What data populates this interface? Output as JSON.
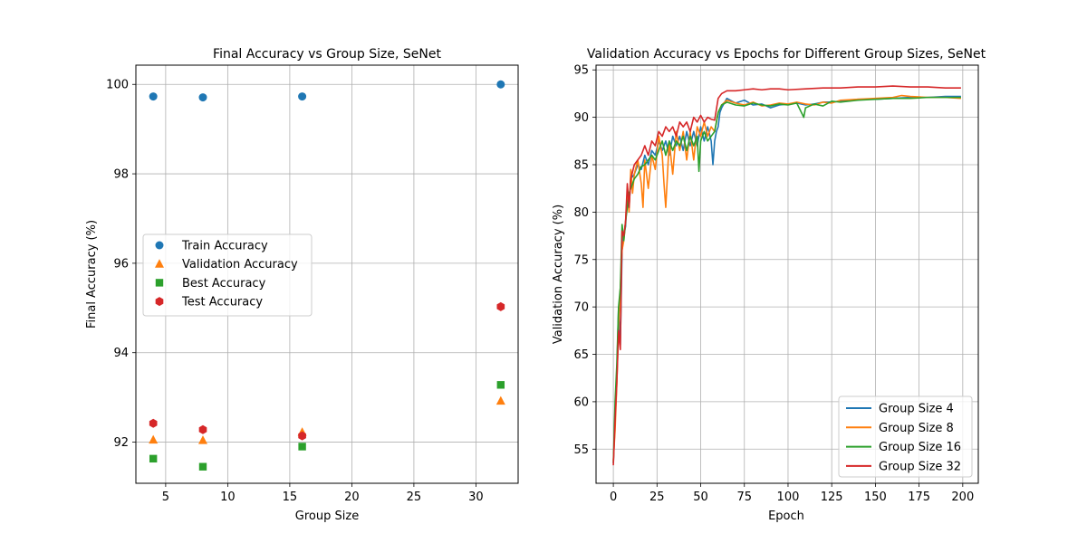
{
  "colors": {
    "blue": "#1f77b4",
    "orange": "#ff7f0e",
    "green": "#2ca02c",
    "red": "#d62728",
    "grid": "#b0b0b0"
  },
  "chart_data": [
    {
      "type": "scatter",
      "title": "Final Accuracy vs Group Size, SeNet",
      "xlabel": "Group Size",
      "ylabel": "Final Accuracy (%)",
      "xlim": [
        2.6,
        33.4
      ],
      "ylim": [
        91.08,
        100.43
      ],
      "xticks": [
        5,
        10,
        15,
        20,
        25,
        30
      ],
      "yticks": [
        92,
        94,
        96,
        98,
        100
      ],
      "grid": true,
      "legend": "center-left",
      "x": [
        4,
        8,
        16,
        32
      ],
      "series": [
        {
          "name": "Train Accuracy",
          "marker": "circle",
          "color": "#1f77b4",
          "values": [
            99.73,
            99.71,
            99.73,
            100.0
          ]
        },
        {
          "name": "Validation Accuracy",
          "marker": "triangle",
          "color": "#ff7f0e",
          "values": [
            92.05,
            92.04,
            92.22,
            92.92
          ]
        },
        {
          "name": "Best Accuracy",
          "marker": "square",
          "color": "#2ca02c",
          "values": [
            91.63,
            91.45,
            91.9,
            93.28
          ]
        },
        {
          "name": "Test Accuracy",
          "marker": "hexagon",
          "color": "#d62728",
          "values": [
            92.42,
            92.28,
            92.14,
            95.03
          ]
        }
      ]
    },
    {
      "type": "line",
      "title": "Validation Accuracy vs Epochs for Different Group Sizes, SeNet",
      "xlabel": "Epoch",
      "ylabel": "Validation Accuracy (%)",
      "xlim": [
        -9.9,
        208.9
      ],
      "ylim": [
        51.4,
        95.5
      ],
      "xticks": [
        0,
        25,
        50,
        75,
        100,
        125,
        150,
        175,
        200
      ],
      "yticks": [
        55,
        60,
        65,
        70,
        75,
        80,
        85,
        90,
        95
      ],
      "grid": true,
      "legend": "lower-right",
      "series": [
        {
          "name": "Group Size 4",
          "color": "#1f77b4",
          "points": [
            [
              0,
              53.5
            ],
            [
              1,
              58
            ],
            [
              2,
              63
            ],
            [
              3,
              70
            ],
            [
              4,
              66
            ],
            [
              5,
              76
            ],
            [
              6,
              77.5
            ],
            [
              7,
              78.5
            ],
            [
              8,
              82
            ],
            [
              9,
              80.5
            ],
            [
              10,
              83.5
            ],
            [
              12,
              84
            ],
            [
              14,
              85
            ],
            [
              16,
              84.5
            ],
            [
              18,
              86
            ],
            [
              20,
              85
            ],
            [
              22,
              86.5
            ],
            [
              24,
              86
            ],
            [
              26,
              87.5
            ],
            [
              28,
              86.5
            ],
            [
              30,
              87.5
            ],
            [
              32,
              86
            ],
            [
              34,
              88
            ],
            [
              36,
              87
            ],
            [
              38,
              88
            ],
            [
              40,
              86.5
            ],
            [
              42,
              88.5
            ],
            [
              44,
              87
            ],
            [
              46,
              88.5
            ],
            [
              48,
              87
            ],
            [
              50,
              89
            ],
            [
              52,
              87.5
            ],
            [
              54,
              89
            ],
            [
              56,
              87.5
            ],
            [
              57,
              85
            ],
            [
              58,
              87.5
            ],
            [
              59,
              88.5
            ],
            [
              60,
              89
            ],
            [
              61,
              90.5
            ],
            [
              62,
              91
            ],
            [
              65,
              92
            ],
            [
              70,
              91.5
            ],
            [
              75,
              91.8
            ],
            [
              80,
              91.3
            ],
            [
              85,
              91.4
            ],
            [
              90,
              91
            ],
            [
              95,
              91.3
            ],
            [
              100,
              91.4
            ],
            [
              105,
              91.5
            ],
            [
              110,
              91.3
            ],
            [
              115,
              91.4
            ],
            [
              120,
              91.6
            ],
            [
              125,
              91.6
            ],
            [
              130,
              91.7
            ],
            [
              140,
              91.9
            ],
            [
              150,
              91.9
            ],
            [
              160,
              92
            ],
            [
              170,
              92.1
            ],
            [
              180,
              92.1
            ],
            [
              190,
              92.2
            ],
            [
              199,
              92.2
            ]
          ]
        },
        {
          "name": "Group Size 8",
          "color": "#ff7f0e",
          "points": [
            [
              0,
              53.8
            ],
            [
              1,
              57
            ],
            [
              2,
              62
            ],
            [
              3,
              68
            ],
            [
              4,
              72
            ],
            [
              5,
              76
            ],
            [
              6,
              77
            ],
            [
              7,
              79
            ],
            [
              8,
              82
            ],
            [
              9,
              80
            ],
            [
              10,
              84.5
            ],
            [
              11,
              82
            ],
            [
              12,
              84
            ],
            [
              14,
              85.5
            ],
            [
              16,
              83
            ],
            [
              17,
              80.5
            ],
            [
              18,
              85.5
            ],
            [
              20,
              82.5
            ],
            [
              22,
              86
            ],
            [
              24,
              84.5
            ],
            [
              26,
              88
            ],
            [
              28,
              86
            ],
            [
              29,
              83
            ],
            [
              30,
              80.5
            ],
            [
              32,
              87.5
            ],
            [
              34,
              84
            ],
            [
              36,
              88.5
            ],
            [
              38,
              86.5
            ],
            [
              40,
              88.5
            ],
            [
              42,
              85.5
            ],
            [
              44,
              88.5
            ],
            [
              46,
              85.5
            ],
            [
              48,
              89
            ],
            [
              50,
              88
            ],
            [
              52,
              89.5
            ],
            [
              54,
              88
            ],
            [
              56,
              89
            ],
            [
              58,
              88.5
            ],
            [
              60,
              90.5
            ],
            [
              62,
              91.3
            ],
            [
              65,
              91.8
            ],
            [
              70,
              91.5
            ],
            [
              75,
              91.3
            ],
            [
              80,
              91.6
            ],
            [
              85,
              91.2
            ],
            [
              90,
              91.3
            ],
            [
              95,
              91.5
            ],
            [
              100,
              91.4
            ],
            [
              105,
              91.6
            ],
            [
              110,
              91.4
            ],
            [
              115,
              91.3
            ],
            [
              120,
              91.6
            ],
            [
              125,
              91.5
            ],
            [
              130,
              91.8
            ],
            [
              140,
              91.9
            ],
            [
              150,
              92
            ],
            [
              160,
              92.1
            ],
            [
              165,
              92.3
            ],
            [
              170,
              92.2
            ],
            [
              180,
              92.1
            ],
            [
              190,
              92.1
            ],
            [
              199,
              92
            ]
          ]
        },
        {
          "name": "Group Size 16",
          "color": "#2ca02c",
          "points": [
            [
              0,
              53.6
            ],
            [
              1,
              60
            ],
            [
              2,
              64
            ],
            [
              3,
              70
            ],
            [
              4,
              72
            ],
            [
              5,
              78.7
            ],
            [
              6,
              77
            ],
            [
              7,
              79
            ],
            [
              8,
              80.5
            ],
            [
              9,
              82
            ],
            [
              10,
              82.5
            ],
            [
              12,
              83.5
            ],
            [
              14,
              84
            ],
            [
              16,
              84.8
            ],
            [
              18,
              85
            ],
            [
              20,
              85.5
            ],
            [
              22,
              86
            ],
            [
              24,
              85.5
            ],
            [
              26,
              86.5
            ],
            [
              28,
              87.5
            ],
            [
              30,
              86
            ],
            [
              32,
              87.5
            ],
            [
              34,
              86.5
            ],
            [
              36,
              87.5
            ],
            [
              38,
              87
            ],
            [
              40,
              88
            ],
            [
              42,
              86.5
            ],
            [
              44,
              88
            ],
            [
              46,
              87
            ],
            [
              48,
              88
            ],
            [
              49,
              84.3
            ],
            [
              50,
              87.5
            ],
            [
              52,
              88.5
            ],
            [
              54,
              87.5
            ],
            [
              56,
              88
            ],
            [
              58,
              88.5
            ],
            [
              60,
              90.5
            ],
            [
              62,
              91.3
            ],
            [
              65,
              91.6
            ],
            [
              70,
              91.3
            ],
            [
              75,
              91.2
            ],
            [
              80,
              91.5
            ],
            [
              85,
              91.3
            ],
            [
              90,
              91.2
            ],
            [
              95,
              91.4
            ],
            [
              100,
              91.3
            ],
            [
              105,
              91.5
            ],
            [
              109,
              90
            ],
            [
              110,
              91
            ],
            [
              115,
              91.4
            ],
            [
              120,
              91.2
            ],
            [
              125,
              91.7
            ],
            [
              130,
              91.6
            ],
            [
              140,
              91.8
            ],
            [
              150,
              91.9
            ],
            [
              160,
              92
            ],
            [
              170,
              92
            ],
            [
              180,
              92.1
            ],
            [
              190,
              92.1
            ],
            [
              199,
              92.1
            ]
          ]
        },
        {
          "name": "Group Size 32",
          "color": "#d62728",
          "points": [
            [
              0,
              53.3
            ],
            [
              1,
              58
            ],
            [
              2,
              62
            ],
            [
              3,
              67.5
            ],
            [
              4,
              65.5
            ],
            [
              5,
              78
            ],
            [
              6,
              77.5
            ],
            [
              7,
              79
            ],
            [
              8,
              83
            ],
            [
              9,
              80.5
            ],
            [
              10,
              83.5
            ],
            [
              12,
              85
            ],
            [
              14,
              85.5
            ],
            [
              16,
              86
            ],
            [
              18,
              87
            ],
            [
              20,
              86
            ],
            [
              22,
              87.5
            ],
            [
              24,
              87
            ],
            [
              26,
              88.5
            ],
            [
              28,
              88
            ],
            [
              30,
              89
            ],
            [
              32,
              88.5
            ],
            [
              34,
              89
            ],
            [
              36,
              88
            ],
            [
              38,
              89.5
            ],
            [
              40,
              89
            ],
            [
              42,
              89.5
            ],
            [
              44,
              88.5
            ],
            [
              46,
              90
            ],
            [
              48,
              89.5
            ],
            [
              50,
              90.2
            ],
            [
              52,
              89.5
            ],
            [
              54,
              90
            ],
            [
              56,
              89.8
            ],
            [
              58,
              89.7
            ],
            [
              60,
              92
            ],
            [
              62,
              92.5
            ],
            [
              65,
              92.8
            ],
            [
              70,
              92.8
            ],
            [
              75,
              92.9
            ],
            [
              80,
              93
            ],
            [
              85,
              92.9
            ],
            [
              90,
              93
            ],
            [
              95,
              93
            ],
            [
              100,
              92.9
            ],
            [
              110,
              93
            ],
            [
              120,
              93.1
            ],
            [
              130,
              93.1
            ],
            [
              140,
              93.2
            ],
            [
              150,
              93.2
            ],
            [
              160,
              93.3
            ],
            [
              170,
              93.2
            ],
            [
              180,
              93.2
            ],
            [
              190,
              93.1
            ],
            [
              199,
              93.1
            ]
          ]
        }
      ]
    }
  ]
}
